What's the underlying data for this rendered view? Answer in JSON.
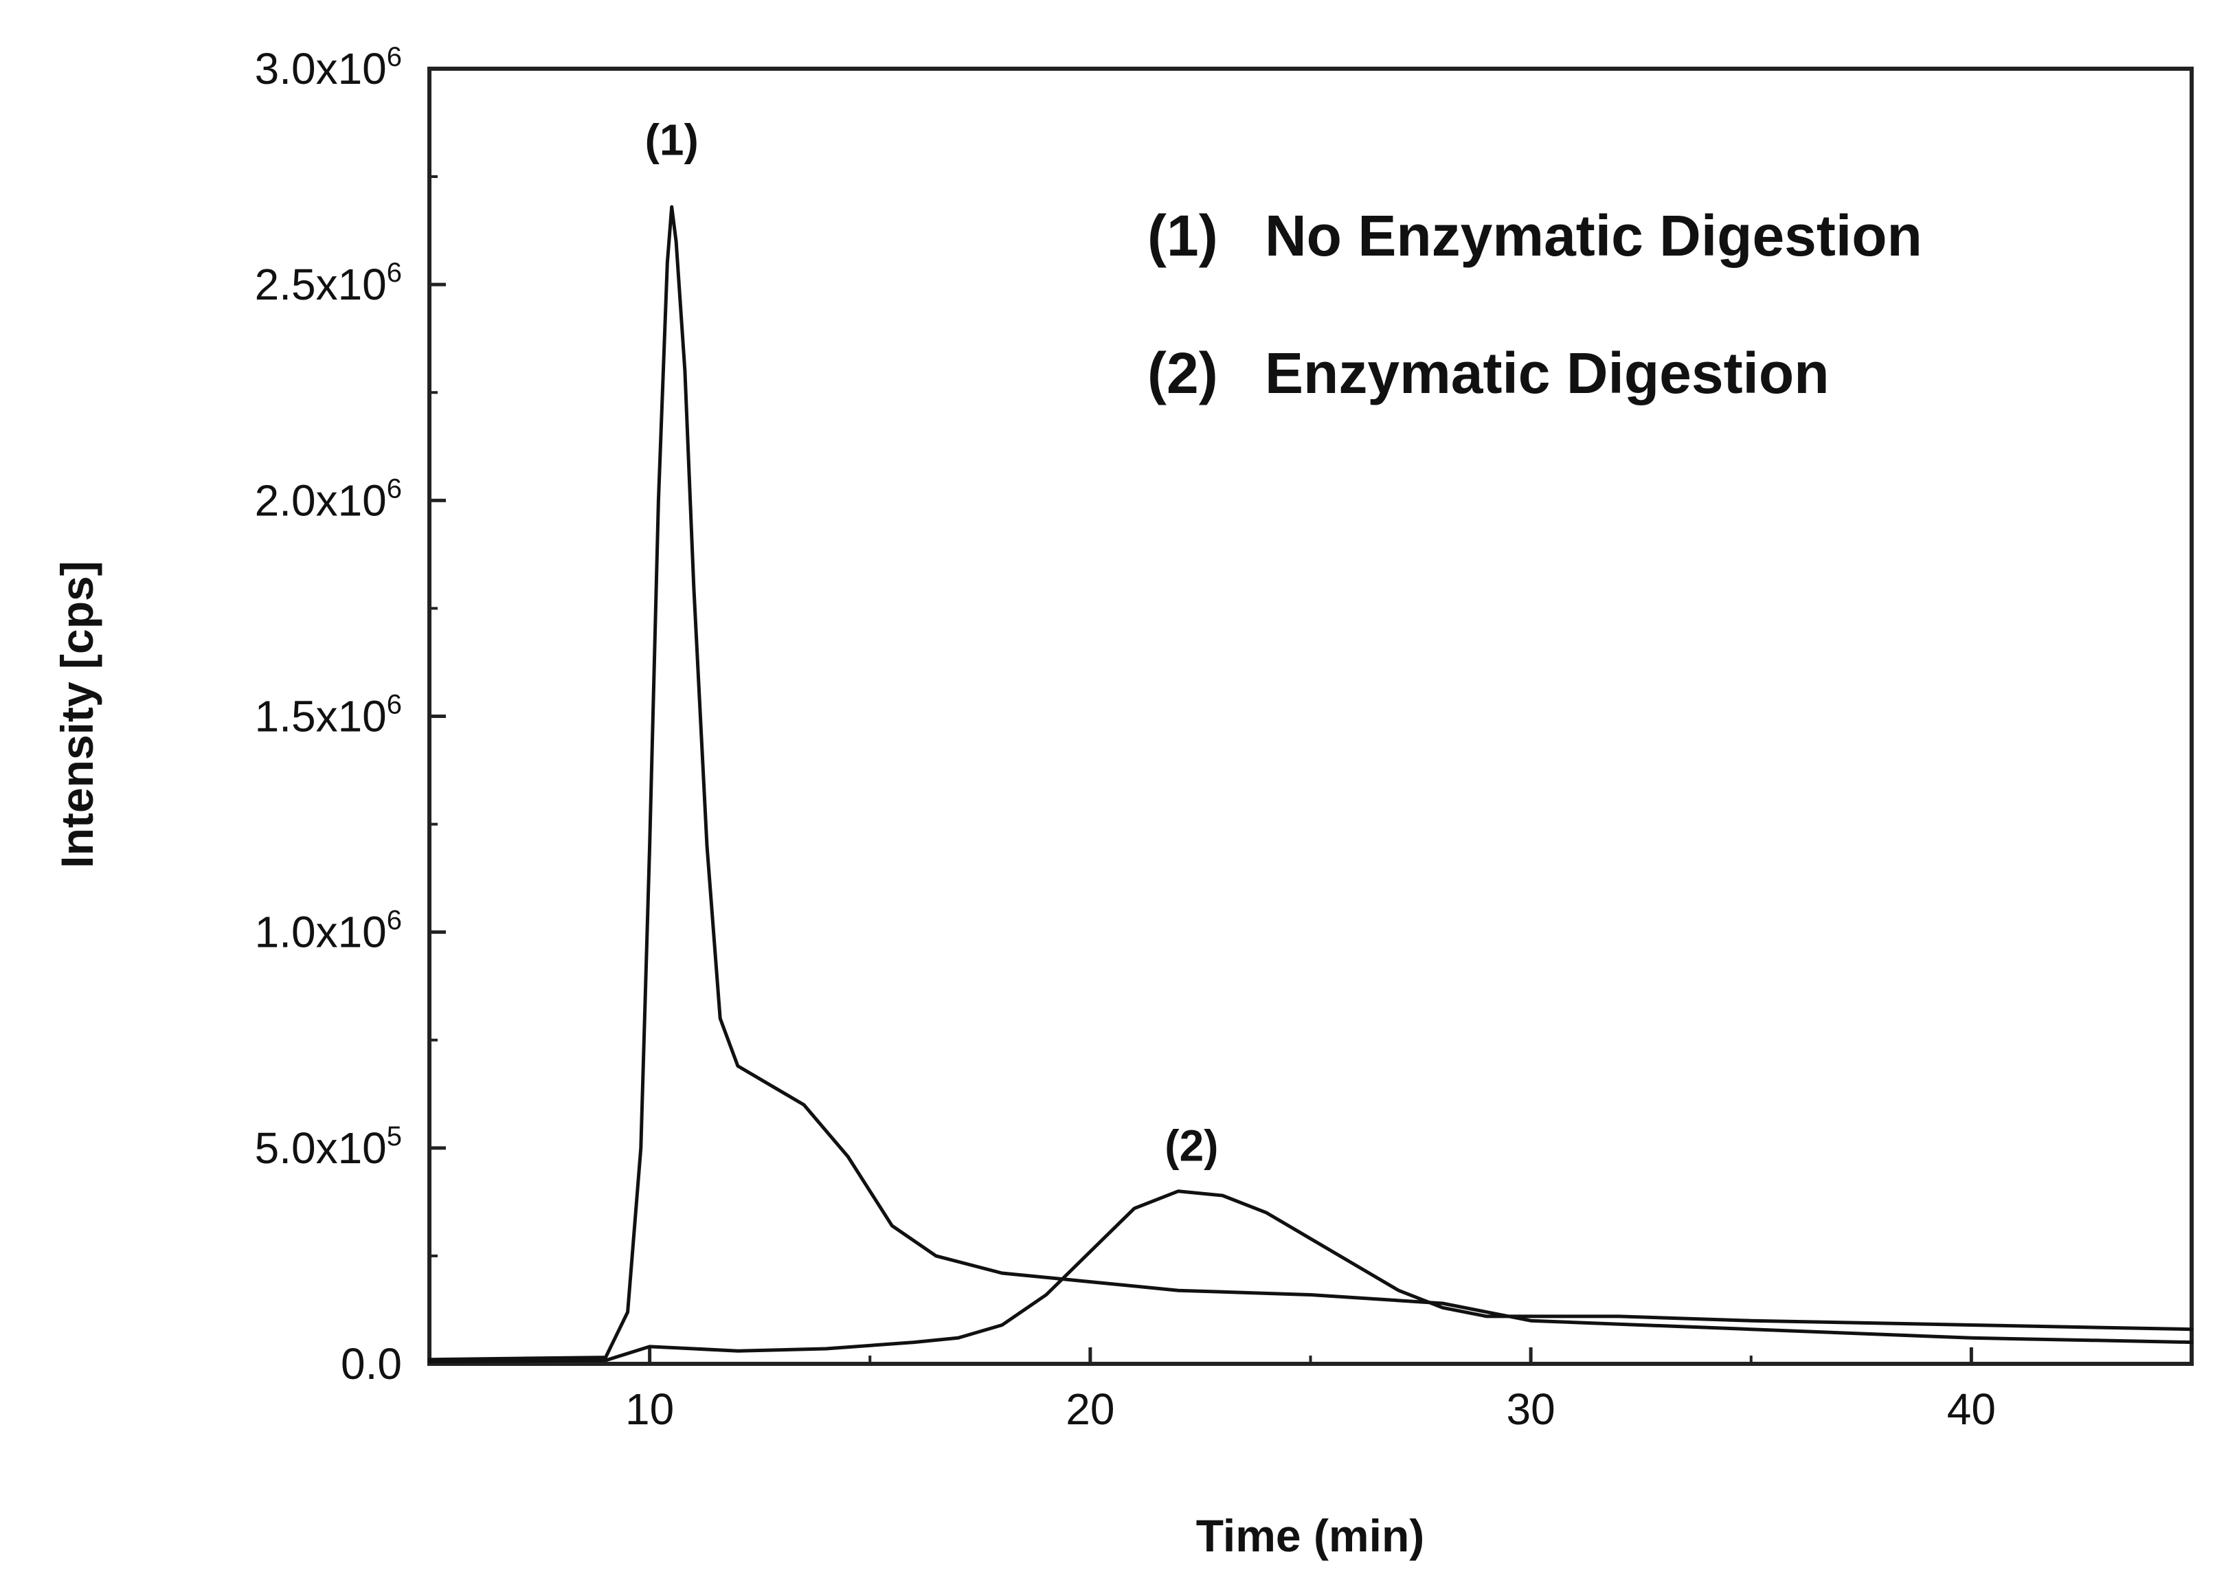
{
  "chart_data": {
    "type": "line",
    "title": "",
    "xlabel": "Time (min)",
    "ylabel": "Intensity [cps]",
    "xlim": [
      5,
      45
    ],
    "ylim": [
      0,
      3000000
    ],
    "x_ticks": [
      {
        "value": 10,
        "label": "10"
      },
      {
        "value": 20,
        "label": "20"
      },
      {
        "value": 30,
        "label": "30"
      },
      {
        "value": 40,
        "label": "40"
      }
    ],
    "y_ticks": [
      {
        "value": 0,
        "label": "0.0"
      },
      {
        "value": 500000,
        "mantissa": "5.0x10",
        "exponent": "5"
      },
      {
        "value": 1000000,
        "mantissa": "1.0x10",
        "exponent": "6"
      },
      {
        "value": 1500000,
        "mantissa": "1.5x10",
        "exponent": "6"
      },
      {
        "value": 2000000,
        "mantissa": "2.0x10",
        "exponent": "6"
      },
      {
        "value": 2500000,
        "mantissa": "2.5x10",
        "exponent": "6"
      },
      {
        "value": 3000000,
        "mantissa": "3.0x10",
        "exponent": "6"
      }
    ],
    "legend": [
      {
        "marker": "(1)",
        "label": "No Enzymatic Digestion"
      },
      {
        "marker": "(2)",
        "label": "Enzymatic Digestion"
      }
    ],
    "annotations": [
      {
        "text": "(1)",
        "x": 10.5,
        "y": 2800000
      },
      {
        "text": "(2)",
        "x": 22.3,
        "y": 470000
      }
    ],
    "series": [
      {
        "name": "(1) No Enzymatic Digestion",
        "x": [
          5,
          9,
          9.5,
          9.8,
          10.0,
          10.2,
          10.4,
          10.5,
          10.6,
          10.8,
          11.0,
          11.3,
          11.6,
          12.0,
          12.5,
          13.5,
          14.5,
          15.5,
          16.5,
          18,
          20,
          22,
          25,
          28,
          30,
          35,
          40,
          45
        ],
        "y": [
          10000,
          15000,
          120000,
          500000,
          1200000,
          2000000,
          2550000,
          2680000,
          2600000,
          2300000,
          1800000,
          1200000,
          800000,
          690000,
          660000,
          600000,
          480000,
          320000,
          250000,
          210000,
          190000,
          170000,
          160000,
          140000,
          100000,
          80000,
          60000,
          50000
        ]
      },
      {
        "name": "(2) Enzymatic Digestion",
        "x": [
          5,
          9,
          10,
          11,
          12,
          14,
          16,
          17,
          18,
          19,
          20,
          21,
          22,
          23,
          24,
          25,
          26,
          27,
          28,
          29,
          30,
          32,
          35,
          40,
          45
        ],
        "y": [
          5000,
          8000,
          40000,
          35000,
          30000,
          35000,
          50000,
          60000,
          90000,
          160000,
          260000,
          360000,
          400000,
          390000,
          350000,
          290000,
          230000,
          170000,
          130000,
          110000,
          110000,
          110000,
          100000,
          90000,
          80000
        ]
      }
    ]
  }
}
